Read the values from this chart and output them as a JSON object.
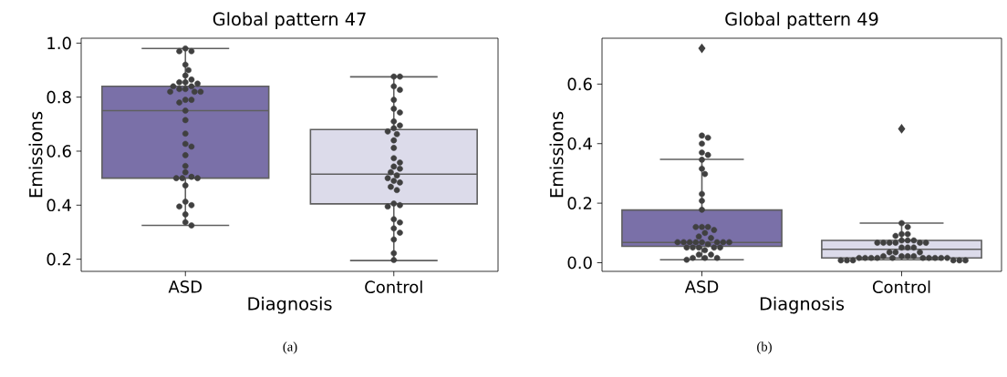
{
  "chart_data": [
    {
      "type": "box",
      "title": "Global pattern 47",
      "xlabel": "Diagnosis",
      "ylabel": "Emissions",
      "categories": [
        "ASD",
        "Control"
      ],
      "colors": [
        "#7a70a8",
        "#dcdbea"
      ],
      "boxes": [
        {
          "low": 0.325,
          "q1": 0.5,
          "median": 0.75,
          "q3": 0.84,
          "high": 0.98
        },
        {
          "low": 0.195,
          "q1": 0.405,
          "median": 0.515,
          "q3": 0.68,
          "high": 0.875
        }
      ],
      "ylim": [
        0.155,
        1.018
      ],
      "yticks": [
        0.2,
        0.4,
        0.6,
        0.8,
        {
          "value": 1.0,
          "label": "1.0"
        }
      ],
      "series": [
        {
          "type": "scatter",
          "color": "#404040",
          "marker": "circle",
          "x": [
            "ASD",
            "ASD",
            "ASD",
            "ASD",
            "ASD",
            "ASD",
            "ASD",
            "ASD",
            "ASD",
            "ASD",
            "ASD",
            "ASD",
            "ASD",
            "ASD",
            "ASD",
            "ASD",
            "ASD",
            "ASD",
            "ASD",
            "ASD",
            "ASD",
            "ASD",
            "ASD",
            "ASD",
            "ASD",
            "ASD",
            "ASD",
            "ASD",
            "ASD",
            "ASD",
            "ASD",
            "ASD",
            "ASD",
            "ASD",
            "ASD",
            "ASD",
            "ASD",
            "ASD",
            "ASD"
          ],
          "values": [
            0.98,
            0.97,
            0.97,
            0.92,
            0.9,
            0.88,
            0.865,
            0.855,
            0.855,
            0.85,
            0.84,
            0.84,
            0.83,
            0.83,
            0.82,
            0.82,
            0.82,
            0.79,
            0.79,
            0.78,
            0.75,
            0.715,
            0.665,
            0.627,
            0.617,
            0.585,
            0.545,
            0.522,
            0.505,
            0.5,
            0.5,
            0.5,
            0.473,
            0.413,
            0.4,
            0.395,
            0.366,
            0.337,
            0.325
          ]
        },
        {
          "type": "scatter",
          "color": "#404040",
          "marker": "circle",
          "x": [
            "Control",
            "Control",
            "Control",
            "Control",
            "Control",
            "Control",
            "Control",
            "Control",
            "Control",
            "Control",
            "Control",
            "Control",
            "Control",
            "Control",
            "Control",
            "Control",
            "Control",
            "Control",
            "Control",
            "Control",
            "Control",
            "Control",
            "Control",
            "Control",
            "Control",
            "Control",
            "Control",
            "Control",
            "Control",
            "Control",
            "Control",
            "Control",
            "Control",
            "Control",
            "Control"
          ],
          "values": [
            0.876,
            0.876,
            0.84,
            0.827,
            0.79,
            0.757,
            0.743,
            0.71,
            0.695,
            0.685,
            0.673,
            0.663,
            0.64,
            0.612,
            0.574,
            0.558,
            0.543,
            0.535,
            0.522,
            0.51,
            0.5,
            0.49,
            0.484,
            0.468,
            0.456,
            0.406,
            0.4,
            0.395,
            0.348,
            0.336,
            0.314,
            0.298,
            0.273,
            0.222,
            0.197
          ]
        }
      ],
      "annotations": [
        "(a)"
      ]
    },
    {
      "type": "box",
      "title": "Global pattern 49",
      "xlabel": "Diagnosis",
      "ylabel": "Emissions",
      "categories": [
        "ASD",
        "Control"
      ],
      "colors": [
        "#7a70a8",
        "#dcdbea"
      ],
      "boxes": [
        {
          "low": 0.01,
          "q1": 0.055,
          "median": 0.068,
          "q3": 0.177,
          "high": 0.347,
          "outliers": [
            0.72
          ]
        },
        {
          "low": 0.01,
          "q1": 0.016,
          "median": 0.045,
          "q3": 0.075,
          "high": 0.133,
          "outliers": [
            0.45
          ]
        }
      ],
      "ylim": [
        -0.029,
        0.754
      ],
      "yticks": [
        {
          "value": 0.0,
          "label": "0.0"
        },
        0.2,
        0.4,
        0.6
      ],
      "series": [
        {
          "type": "scatter",
          "color": "#404040",
          "marker": "circle",
          "x": [
            "ASD",
            "ASD",
            "ASD",
            "ASD",
            "ASD",
            "ASD",
            "ASD",
            "ASD",
            "ASD",
            "ASD",
            "ASD",
            "ASD",
            "ASD",
            "ASD",
            "ASD",
            "ASD",
            "ASD",
            "ASD",
            "ASD",
            "ASD",
            "ASD",
            "ASD",
            "ASD",
            "ASD",
            "ASD",
            "ASD",
            "ASD",
            "ASD",
            "ASD",
            "ASD",
            "ASD",
            "ASD",
            "ASD",
            "ASD",
            "ASD",
            "ASD",
            "ASD",
            "ASD",
            "ASD"
          ],
          "values": [
            0.427,
            0.42,
            0.4,
            0.37,
            0.362,
            0.346,
            0.316,
            0.298,
            0.231,
            0.208,
            0.178,
            0.12,
            0.12,
            0.12,
            0.11,
            0.1,
            0.088,
            0.083,
            0.069,
            0.069,
            0.069,
            0.069,
            0.069,
            0.069,
            0.069,
            0.069,
            0.062,
            0.051,
            0.051,
            0.051,
            0.051,
            0.051,
            0.042,
            0.027,
            0.027,
            0.016,
            0.016,
            0.016,
            0.01
          ]
        },
        {
          "type": "scatter",
          "color": "#404040",
          "marker": "circle",
          "x": [
            "Control",
            "Control",
            "Control",
            "Control",
            "Control",
            "Control",
            "Control",
            "Control",
            "Control",
            "Control",
            "Control",
            "Control",
            "Control",
            "Control",
            "Control",
            "Control",
            "Control",
            "Control",
            "Control",
            "Control",
            "Control",
            "Control",
            "Control",
            "Control",
            "Control",
            "Control",
            "Control",
            "Control",
            "Control",
            "Control",
            "Control",
            "Control",
            "Control",
            "Control",
            "Control",
            "Control",
            "Control",
            "Control",
            "Control",
            "Control"
          ],
          "values": [
            0.133,
            0.12,
            0.096,
            0.096,
            0.09,
            0.075,
            0.075,
            0.075,
            0.067,
            0.067,
            0.067,
            0.067,
            0.067,
            0.067,
            0.051,
            0.051,
            0.051,
            0.035,
            0.035,
            0.035,
            0.022,
            0.022,
            0.022,
            0.022,
            0.016,
            0.016,
            0.016,
            0.016,
            0.016,
            0.016,
            0.016,
            0.016,
            0.016,
            0.016,
            0.008,
            0.008,
            0.008,
            0.008,
            0.008,
            0.008
          ]
        }
      ],
      "annotations": [
        "(b)"
      ]
    }
  ]
}
